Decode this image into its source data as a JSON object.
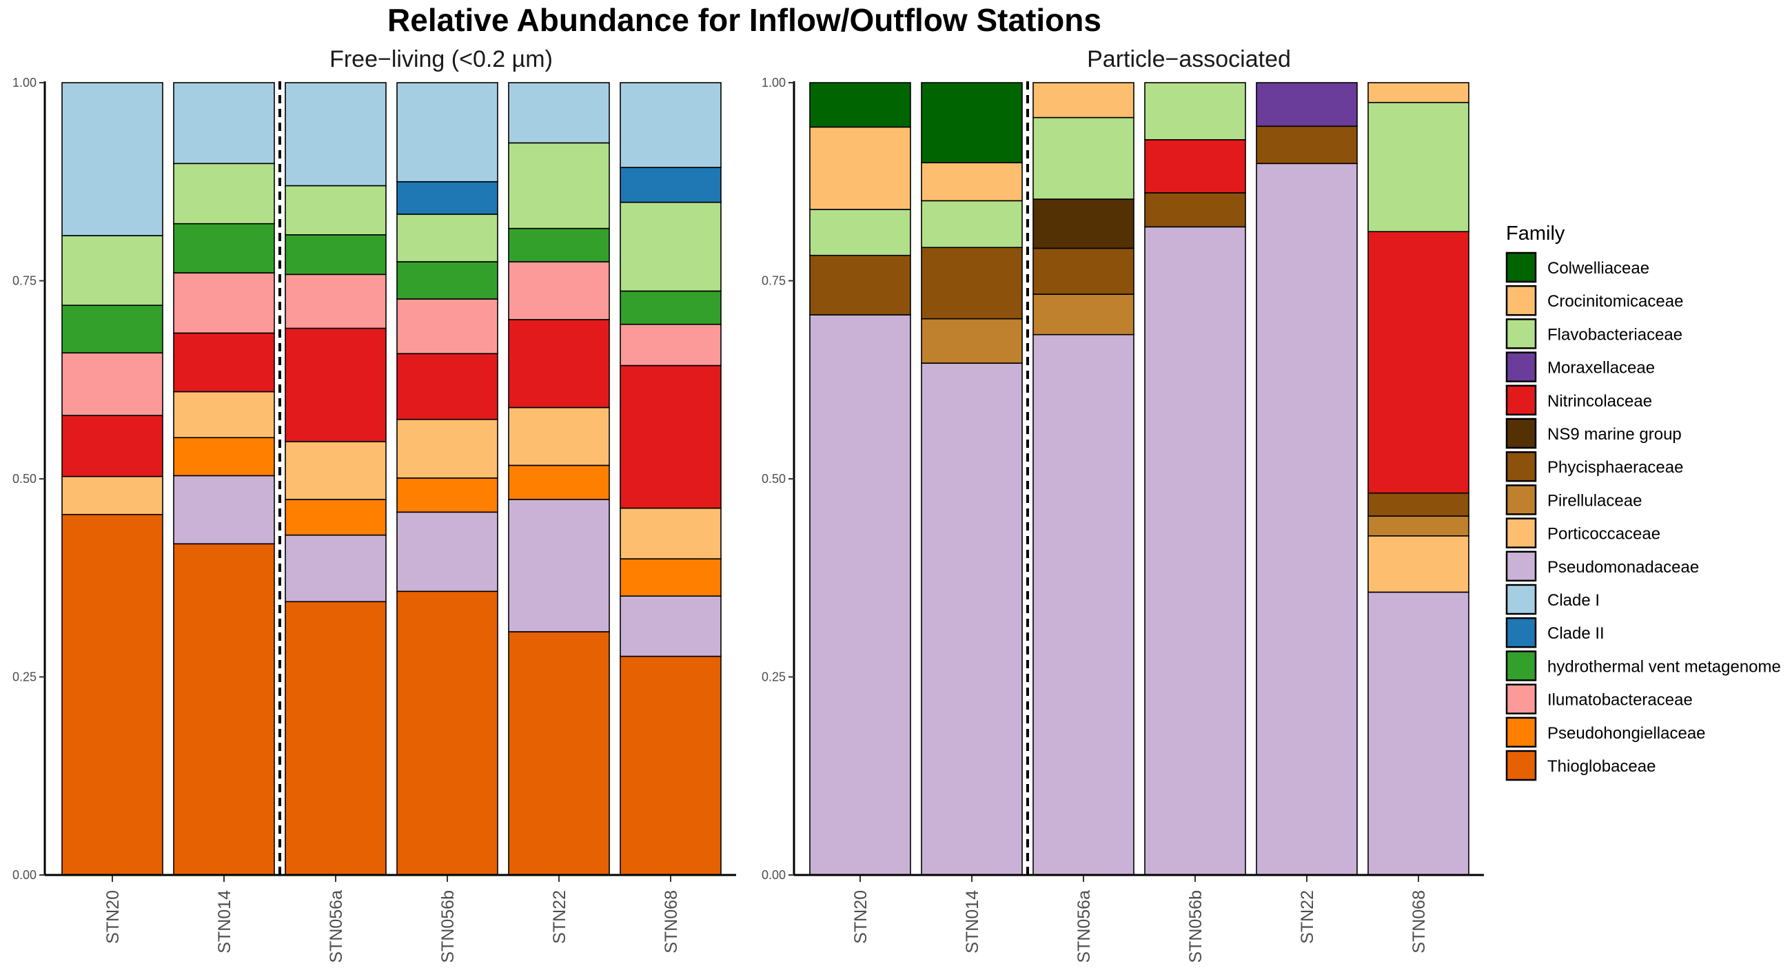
{
  "title": "Relative Abundance for Inflow/Outflow Stations",
  "legend_title": "Family",
  "family_colors": {
    "Colwelliaceae": "#006400",
    "Crocinitomicaceae": "#FDBF6F",
    "Flavobacteriaceae": "#B2DF8A",
    "Moraxellaceae": "#6A3D9A",
    "Nitrincolaceae": "#E31A1C",
    "NS9 marine group": "#543005",
    "Phycisphaeraceae": "#8C510A",
    "Pirellulaceae": "#BF812D",
    "Porticoccaceae": "#FDBF6F",
    "Pseudomonadaceae": "#CAB2D6",
    "Clade I": "#A6CEE3",
    "Clade II": "#1F78B4",
    "hydrothermal vent metagenome": "#33A02C",
    "Ilumatobacteraceae": "#FB9A99",
    "Pseudohongiellaceae": "#FF7F00",
    "Thioglobaceae": "#E66101"
  },
  "chart_data": [
    {
      "type": "bar",
      "stacked": true,
      "title": "Free−living (<0.2 µm)",
      "xlabel": "",
      "ylabel": "",
      "ylim": [
        0,
        1
      ],
      "y_ticks": [
        "0.00",
        "0.25",
        "0.50",
        "0.75",
        "1.00"
      ],
      "categories": [
        "STN20",
        "STN014",
        "STN056a",
        "STN056b",
        "STN22",
        "STN068"
      ],
      "divider_after_index": 1,
      "divider_style": "dashed",
      "stacks": [
        [
          {
            "family": "Thioglobaceae",
            "value": 0.455
          },
          {
            "family": "Porticoccaceae",
            "value": 0.048
          },
          {
            "family": "Nitrincolaceae",
            "value": 0.077
          },
          {
            "family": "Ilumatobacteraceae",
            "value": 0.079
          },
          {
            "family": "hydrothermal vent metagenome",
            "value": 0.06
          },
          {
            "family": "Flavobacteriaceae",
            "value": 0.088
          },
          {
            "family": "Clade I",
            "value": 0.193
          }
        ],
        [
          {
            "family": "Thioglobaceae",
            "value": 0.418
          },
          {
            "family": "Pseudomonadaceae",
            "value": 0.086
          },
          {
            "family": "Pseudohongiellaceae",
            "value": 0.048
          },
          {
            "family": "Porticoccaceae",
            "value": 0.058
          },
          {
            "family": "Nitrincolaceae",
            "value": 0.074
          },
          {
            "family": "Ilumatobacteraceae",
            "value": 0.076
          },
          {
            "family": "hydrothermal vent metagenome",
            "value": 0.062
          },
          {
            "family": "Flavobacteriaceae",
            "value": 0.076
          },
          {
            "family": "Clade I",
            "value": 0.102
          }
        ],
        [
          {
            "family": "Thioglobaceae",
            "value": 0.345
          },
          {
            "family": "Pseudomonadaceae",
            "value": 0.084
          },
          {
            "family": "Pseudohongiellaceae",
            "value": 0.045
          },
          {
            "family": "Porticoccaceae",
            "value": 0.073
          },
          {
            "family": "Nitrincolaceae",
            "value": 0.143
          },
          {
            "family": "Ilumatobacteraceae",
            "value": 0.068
          },
          {
            "family": "hydrothermal vent metagenome",
            "value": 0.05
          },
          {
            "family": "Flavobacteriaceae",
            "value": 0.062
          },
          {
            "family": "Clade I",
            "value": 0.13
          }
        ],
        [
          {
            "family": "Thioglobaceae",
            "value": 0.358
          },
          {
            "family": "Pseudomonadaceae",
            "value": 0.1
          },
          {
            "family": "Pseudohongiellaceae",
            "value": 0.043
          },
          {
            "family": "Porticoccaceae",
            "value": 0.074
          },
          {
            "family": "Nitrincolaceae",
            "value": 0.083
          },
          {
            "family": "Ilumatobacteraceae",
            "value": 0.069
          },
          {
            "family": "hydrothermal vent metagenome",
            "value": 0.047
          },
          {
            "family": "Flavobacteriaceae",
            "value": 0.06
          },
          {
            "family": "Clade II",
            "value": 0.041
          },
          {
            "family": "Clade I",
            "value": 0.125
          }
        ],
        [
          {
            "family": "Thioglobaceae",
            "value": 0.307
          },
          {
            "family": "Pseudomonadaceae",
            "value": 0.167
          },
          {
            "family": "Pseudohongiellaceae",
            "value": 0.043
          },
          {
            "family": "Porticoccaceae",
            "value": 0.073
          },
          {
            "family": "Nitrincolaceae",
            "value": 0.111
          },
          {
            "family": "Ilumatobacteraceae",
            "value": 0.073
          },
          {
            "family": "hydrothermal vent metagenome",
            "value": 0.042
          },
          {
            "family": "Flavobacteriaceae",
            "value": 0.108
          },
          {
            "family": "Clade I",
            "value": 0.076
          }
        ],
        [
          {
            "family": "Thioglobaceae",
            "value": 0.276
          },
          {
            "family": "Pseudomonadaceae",
            "value": 0.076
          },
          {
            "family": "Pseudohongiellaceae",
            "value": 0.047
          },
          {
            "family": "Porticoccaceae",
            "value": 0.064
          },
          {
            "family": "Nitrincolaceae",
            "value": 0.18
          },
          {
            "family": "Ilumatobacteraceae",
            "value": 0.052
          },
          {
            "family": "hydrothermal vent metagenome",
            "value": 0.042
          },
          {
            "family": "Flavobacteriaceae",
            "value": 0.112
          },
          {
            "family": "Clade II",
            "value": 0.044
          },
          {
            "family": "Clade I",
            "value": 0.107
          }
        ]
      ]
    },
    {
      "type": "bar",
      "stacked": true,
      "title": "Particle−associated",
      "xlabel": "",
      "ylabel": "",
      "ylim": [
        0,
        1
      ],
      "y_ticks": [
        "0.00",
        "0.25",
        "0.50",
        "0.75",
        "1.00"
      ],
      "categories": [
        "STN20",
        "STN014",
        "STN056a",
        "STN056b",
        "STN22",
        "STN068"
      ],
      "divider_after_index": 1,
      "divider_style": "dashed",
      "stacks": [
        [
          {
            "family": "Pseudomonadaceae",
            "value": 0.707
          },
          {
            "family": "Phycisphaeraceae",
            "value": 0.075
          },
          {
            "family": "Flavobacteriaceae",
            "value": 0.058
          },
          {
            "family": "Crocinitomicaceae",
            "value": 0.104
          },
          {
            "family": "Colwelliaceae",
            "value": 0.056
          }
        ],
        [
          {
            "family": "Pseudomonadaceae",
            "value": 0.646
          },
          {
            "family": "Pirellulaceae",
            "value": 0.056
          },
          {
            "family": "Phycisphaeraceae",
            "value": 0.09
          },
          {
            "family": "Flavobacteriaceae",
            "value": 0.059
          },
          {
            "family": "Crocinitomicaceae",
            "value": 0.048
          },
          {
            "family": "Colwelliaceae",
            "value": 0.101
          }
        ],
        [
          {
            "family": "Pseudomonadaceae",
            "value": 0.682
          },
          {
            "family": "Pirellulaceae",
            "value": 0.051
          },
          {
            "family": "Phycisphaeraceae",
            "value": 0.058
          },
          {
            "family": "NS9 marine group",
            "value": 0.062
          },
          {
            "family": "Flavobacteriaceae",
            "value": 0.103
          },
          {
            "family": "Crocinitomicaceae",
            "value": 0.044
          }
        ],
        [
          {
            "family": "Pseudomonadaceae",
            "value": 0.818
          },
          {
            "family": "Phycisphaeraceae",
            "value": 0.043
          },
          {
            "family": "Nitrincolaceae",
            "value": 0.067
          },
          {
            "family": "Flavobacteriaceae",
            "value": 0.072
          }
        ],
        [
          {
            "family": "Pseudomonadaceae",
            "value": 0.898
          },
          {
            "family": "Phycisphaeraceae",
            "value": 0.047
          },
          {
            "family": "Moraxellaceae",
            "value": 0.055
          }
        ],
        [
          {
            "family": "Pseudomonadaceae",
            "value": 0.357
          },
          {
            "family": "Porticoccaceae",
            "value": 0.071
          },
          {
            "family": "Pirellulaceae",
            "value": 0.025
          },
          {
            "family": "Phycisphaeraceae",
            "value": 0.029
          },
          {
            "family": "Nitrincolaceae",
            "value": 0.33
          },
          {
            "family": "Flavobacteriaceae",
            "value": 0.163
          },
          {
            "family": "Crocinitomicaceae",
            "value": 0.025
          }
        ]
      ]
    }
  ],
  "legend_entries": [
    "Colwelliaceae",
    "Crocinitomicaceae",
    "Flavobacteriaceae",
    "Moraxellaceae",
    "Nitrincolaceae",
    "NS9 marine group",
    "Phycisphaeraceae",
    "Pirellulaceae",
    "Porticoccaceae",
    "Pseudomonadaceae",
    "Clade I",
    "Clade II",
    "hydrothermal vent metagenome",
    "Ilumatobacteraceae",
    "Pseudohongiellaceae",
    "Thioglobaceae"
  ]
}
